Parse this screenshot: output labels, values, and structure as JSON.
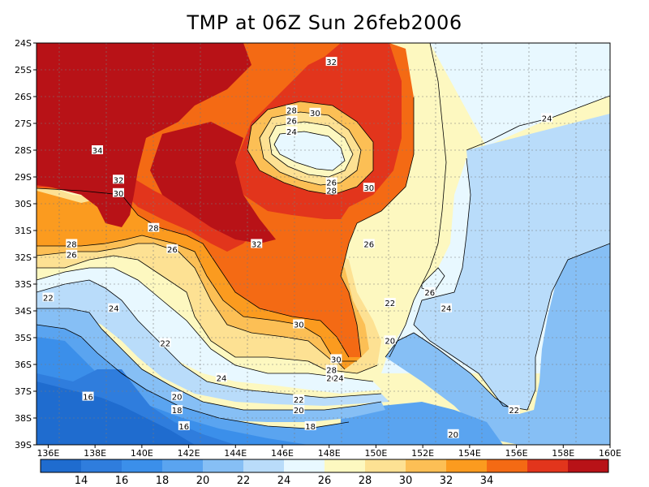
{
  "title": "TMP at 06Z Sun 26feb2006",
  "map": {
    "lat_labels": [
      "24S",
      "25S",
      "26S",
      "27S",
      "28S",
      "29S",
      "30S",
      "31S",
      "32S",
      "33S",
      "34S",
      "35S",
      "36S",
      "37S",
      "38S",
      "39S"
    ],
    "lon_labels": [
      "136E",
      "138E",
      "140E",
      "142E",
      "144E",
      "146E",
      "148E",
      "150E",
      "152E",
      "154E",
      "156E",
      "158E",
      "160E"
    ],
    "contour_labels": [
      {
        "text": "32",
        "lon": 148.1,
        "lat": -24.7
      },
      {
        "text": "34",
        "lon": 138.1,
        "lat": -28.0
      },
      {
        "text": "28",
        "lon": 146.4,
        "lat": -26.5
      },
      {
        "text": "30",
        "lon": 147.4,
        "lat": -26.6
      },
      {
        "text": "26",
        "lon": 146.4,
        "lat": -26.9
      },
      {
        "text": "24",
        "lon": 146.4,
        "lat": -27.3
      },
      {
        "text": "32",
        "lon": 139.0,
        "lat": -29.1
      },
      {
        "text": "30",
        "lon": 139.0,
        "lat": -29.6
      },
      {
        "text": "26",
        "lon": 148.1,
        "lat": -29.2
      },
      {
        "text": "28",
        "lon": 148.1,
        "lat": -29.5
      },
      {
        "text": "30",
        "lon": 149.7,
        "lat": -29.4
      },
      {
        "text": "28",
        "lon": 140.5,
        "lat": -30.9
      },
      {
        "text": "28",
        "lon": 137.0,
        "lat": -31.5
      },
      {
        "text": "26",
        "lon": 141.3,
        "lat": -31.7
      },
      {
        "text": "26",
        "lon": 137.0,
        "lat": -31.9
      },
      {
        "text": "32",
        "lon": 144.9,
        "lat": -31.5
      },
      {
        "text": "26",
        "lon": 149.7,
        "lat": -31.5
      },
      {
        "text": "22",
        "lon": 136.0,
        "lat": -33.5
      },
      {
        "text": "24",
        "lon": 138.8,
        "lat": -33.9
      },
      {
        "text": "26",
        "lon": 152.3,
        "lat": -33.3
      },
      {
        "text": "22",
        "lon": 150.6,
        "lat": -33.7
      },
      {
        "text": "24",
        "lon": 153.0,
        "lat": -33.9
      },
      {
        "text": "30",
        "lon": 146.7,
        "lat": -34.5
      },
      {
        "text": "22",
        "lon": 141.0,
        "lat": -35.2
      },
      {
        "text": "20",
        "lon": 150.6,
        "lat": -35.1
      },
      {
        "text": "30",
        "lon": 148.3,
        "lat": -35.8
      },
      {
        "text": "28",
        "lon": 148.1,
        "lat": -36.2
      },
      {
        "text": "26",
        "lon": 148.1,
        "lat": -36.5
      },
      {
        "text": "24",
        "lon": 148.4,
        "lat": -36.5
      },
      {
        "text": "24",
        "lon": 143.4,
        "lat": -36.5
      },
      {
        "text": "16",
        "lon": 137.7,
        "lat": -37.2
      },
      {
        "text": "20",
        "lon": 141.5,
        "lat": -37.2
      },
      {
        "text": "18",
        "lon": 141.5,
        "lat": -37.7
      },
      {
        "text": "22",
        "lon": 146.7,
        "lat": -37.3
      },
      {
        "text": "20",
        "lon": 146.7,
        "lat": -37.7
      },
      {
        "text": "16",
        "lon": 141.8,
        "lat": -38.3
      },
      {
        "text": "18",
        "lon": 147.2,
        "lat": -38.3
      },
      {
        "text": "22",
        "lon": 155.9,
        "lat": -37.7
      },
      {
        "text": "20",
        "lon": 153.3,
        "lat": -38.6
      },
      {
        "text": "24",
        "lon": 157.3,
        "lat": -26.8
      }
    ]
  },
  "colorbar": {
    "labels": [
      "14",
      "16",
      "18",
      "20",
      "22",
      "24",
      "26",
      "28",
      "30",
      "32",
      "34"
    ],
    "colors": [
      "#1f6ccf",
      "#2f7ddd",
      "#3b8fea",
      "#5aa4f0",
      "#86bff5",
      "#b9dcfa",
      "#e8f8ff",
      "#fdf8c0",
      "#fde193",
      "#fcbf55",
      "#fb9b1f",
      "#f46a14",
      "#e2351c",
      "#b81217"
    ]
  },
  "fill_colors": {
    "c14": "#1f6ccf",
    "c16": "#2f7ddd",
    "c18": "#3b8fea",
    "c20": "#5aa4f0",
    "c22": "#86bff5",
    "c24": "#b9dcfa",
    "c26": "#e8f8ff",
    "c28": "#fdf8c0",
    "c30": "#fde193",
    "c32": "#fcbf55",
    "c34": "#fb9b1f",
    "c36": "#f46a14",
    "c38": "#e2351c",
    "c40": "#b81217"
  }
}
